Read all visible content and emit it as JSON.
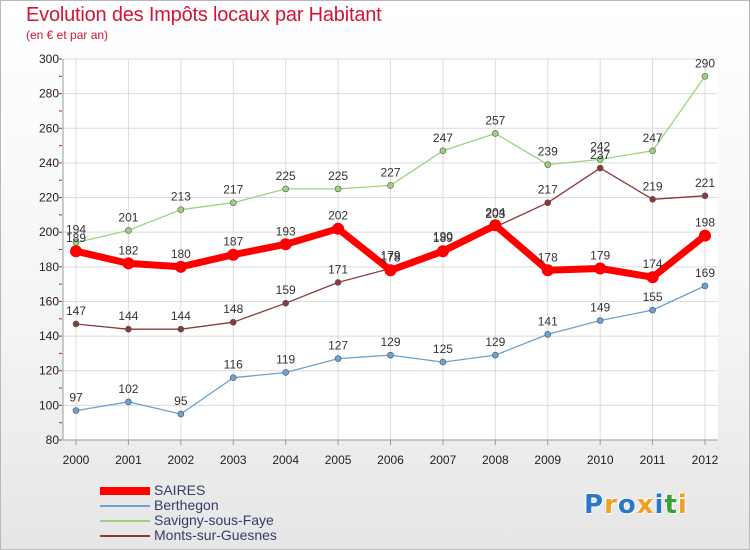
{
  "title": "Evolution des Impôts locaux par Habitant",
  "subtitle": "(en € et par an)",
  "brand": {
    "letters": [
      "P",
      "r",
      "o",
      "x",
      "i",
      "t",
      "i"
    ],
    "colors": [
      "#2a78c8",
      "#f0a020",
      "#2a78c8",
      "#f0a020",
      "#2a78c8",
      "#3aa03a",
      "#f0a020"
    ]
  },
  "chart_data": {
    "type": "line",
    "x": [
      "2000",
      "2001",
      "2002",
      "2003",
      "2004",
      "2005",
      "2006",
      "2007",
      "2008",
      "2009",
      "2010",
      "2011",
      "2012"
    ],
    "ylim": [
      80,
      300
    ],
    "yticks": [
      "80",
      "100",
      "120",
      "140",
      "160",
      "180",
      "200",
      "220",
      "240",
      "260",
      "280",
      "300"
    ],
    "grid": true,
    "legend_position": "bottom-left",
    "series": [
      {
        "name": "SAIRES",
        "color": "#ff0000",
        "values": [
          189,
          182,
          180,
          187,
          193,
          202,
          178,
          189,
          204,
          178,
          179,
          174,
          198
        ],
        "labels": [
          "189",
          "182",
          "180",
          "187",
          "193",
          "202",
          "178",
          "189",
          "204",
          "178",
          "179",
          "174",
          "198"
        ]
      },
      {
        "name": "Berthegon",
        "color": "#6aa2d4",
        "values": [
          97,
          102,
          95,
          116,
          119,
          127,
          129,
          125,
          129,
          141,
          149,
          155,
          169
        ],
        "labels": [
          "97",
          "102",
          "95",
          "116",
          "119",
          "127",
          "129",
          "125",
          "129",
          "141",
          "149",
          "155",
          "169"
        ]
      },
      {
        "name": "Savigny-sous-Faye",
        "color": "#9ad47a",
        "values": [
          194,
          201,
          213,
          217,
          225,
          225,
          227,
          247,
          257,
          239,
          242,
          247,
          290
        ],
        "labels": [
          "194",
          "201",
          "213",
          "217",
          "225",
          "225",
          "227",
          "247",
          "257",
          "239",
          "242",
          "247",
          "290"
        ]
      },
      {
        "name": "Monts-sur-Guesnes",
        "color": "#8a3a3a",
        "values": [
          147,
          144,
          144,
          148,
          159,
          171,
          179,
          190,
          203,
          217,
          237,
          219,
          221
        ],
        "labels": [
          "147",
          "144",
          "144",
          "148",
          "159",
          "171",
          "179",
          "190",
          "203",
          "217",
          "237",
          "219",
          "221"
        ]
      }
    ]
  }
}
